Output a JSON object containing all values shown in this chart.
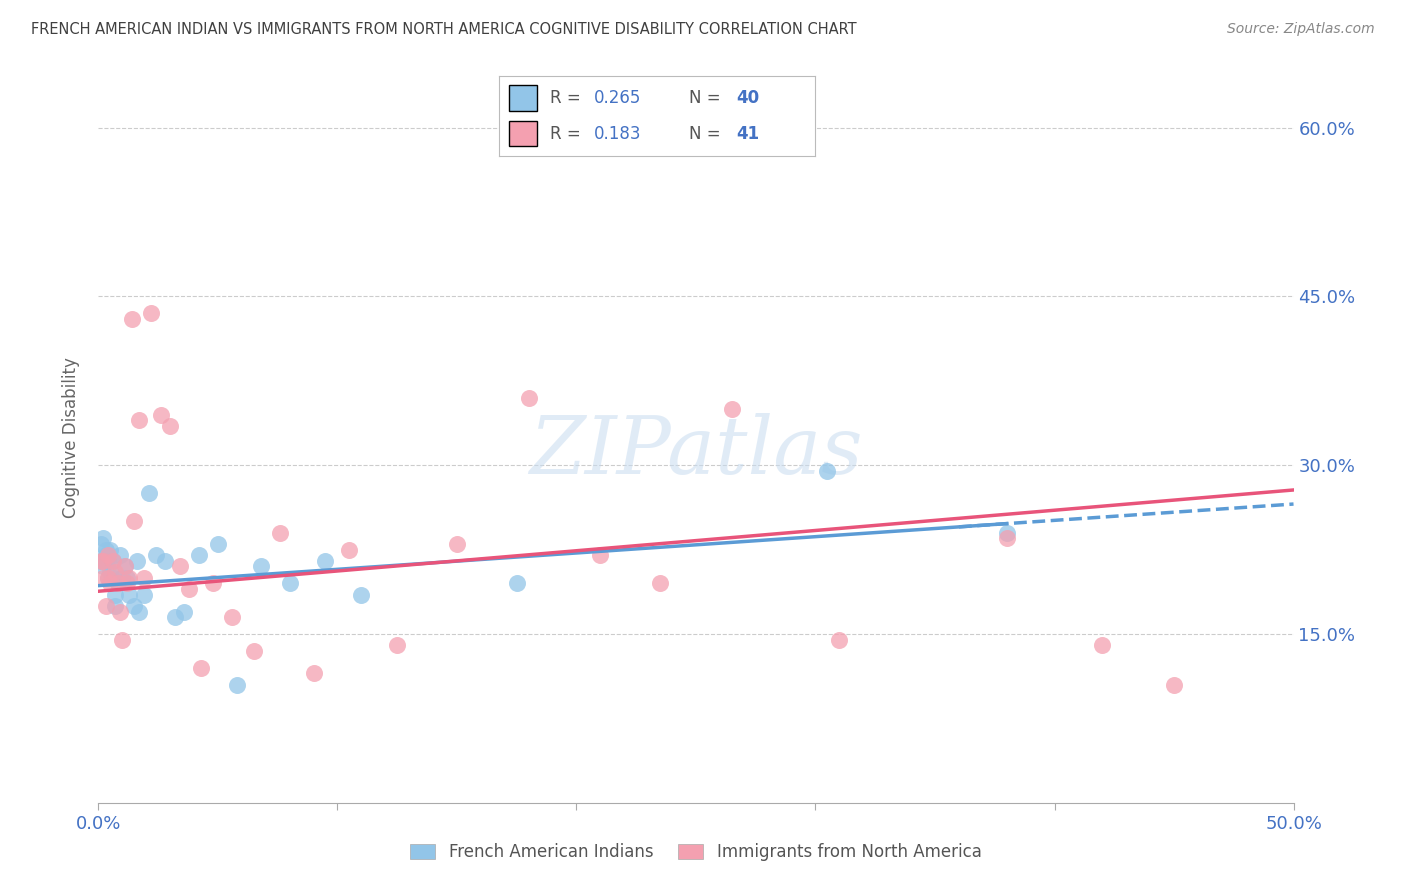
{
  "title": "FRENCH AMERICAN INDIAN VS IMMIGRANTS FROM NORTH AMERICA COGNITIVE DISABILITY CORRELATION CHART",
  "source": "Source: ZipAtlas.com",
  "ylabel": "Cognitive Disability",
  "yaxis_labels": [
    "60.0%",
    "45.0%",
    "30.0%",
    "15.0%"
  ],
  "yaxis_values": [
    0.6,
    0.45,
    0.3,
    0.15
  ],
  "xlim": [
    0.0,
    0.5
  ],
  "ylim": [
    0.0,
    0.65
  ],
  "legend_r1": "0.265",
  "legend_n1": "40",
  "legend_r2": "0.183",
  "legend_n2": "41",
  "watermark": "ZIPatlas",
  "color_blue": "#92C5E8",
  "color_pink": "#F4A0B0",
  "color_axis_labels": "#4472C4",
  "color_title": "#404040",
  "series1_x": [
    0.001,
    0.001,
    0.002,
    0.002,
    0.003,
    0.003,
    0.003,
    0.004,
    0.004,
    0.005,
    0.005,
    0.006,
    0.006,
    0.007,
    0.007,
    0.008,
    0.009,
    0.01,
    0.011,
    0.012,
    0.013,
    0.015,
    0.016,
    0.017,
    0.019,
    0.021,
    0.024,
    0.028,
    0.032,
    0.036,
    0.042,
    0.05,
    0.058,
    0.068,
    0.08,
    0.095,
    0.11,
    0.175,
    0.305,
    0.38
  ],
  "series1_y": [
    0.215,
    0.23,
    0.21,
    0.235,
    0.22,
    0.215,
    0.225,
    0.2,
    0.215,
    0.205,
    0.225,
    0.2,
    0.215,
    0.185,
    0.175,
    0.195,
    0.22,
    0.2,
    0.21,
    0.2,
    0.185,
    0.175,
    0.215,
    0.17,
    0.185,
    0.275,
    0.22,
    0.215,
    0.165,
    0.17,
    0.22,
    0.23,
    0.105,
    0.21,
    0.195,
    0.215,
    0.185,
    0.195,
    0.295,
    0.24
  ],
  "series2_x": [
    0.001,
    0.002,
    0.002,
    0.003,
    0.004,
    0.004,
    0.005,
    0.006,
    0.007,
    0.008,
    0.009,
    0.01,
    0.011,
    0.012,
    0.013,
    0.014,
    0.015,
    0.017,
    0.019,
    0.022,
    0.026,
    0.03,
    0.034,
    0.038,
    0.043,
    0.048,
    0.056,
    0.065,
    0.076,
    0.09,
    0.105,
    0.125,
    0.15,
    0.18,
    0.21,
    0.235,
    0.265,
    0.31,
    0.38,
    0.42,
    0.45
  ],
  "series2_y": [
    0.215,
    0.2,
    0.215,
    0.175,
    0.22,
    0.2,
    0.195,
    0.215,
    0.205,
    0.195,
    0.17,
    0.145,
    0.21,
    0.195,
    0.2,
    0.43,
    0.25,
    0.34,
    0.2,
    0.435,
    0.345,
    0.335,
    0.21,
    0.19,
    0.12,
    0.195,
    0.165,
    0.135,
    0.24,
    0.115,
    0.225,
    0.14,
    0.23,
    0.36,
    0.22,
    0.195,
    0.35,
    0.145,
    0.235,
    0.14,
    0.105
  ]
}
